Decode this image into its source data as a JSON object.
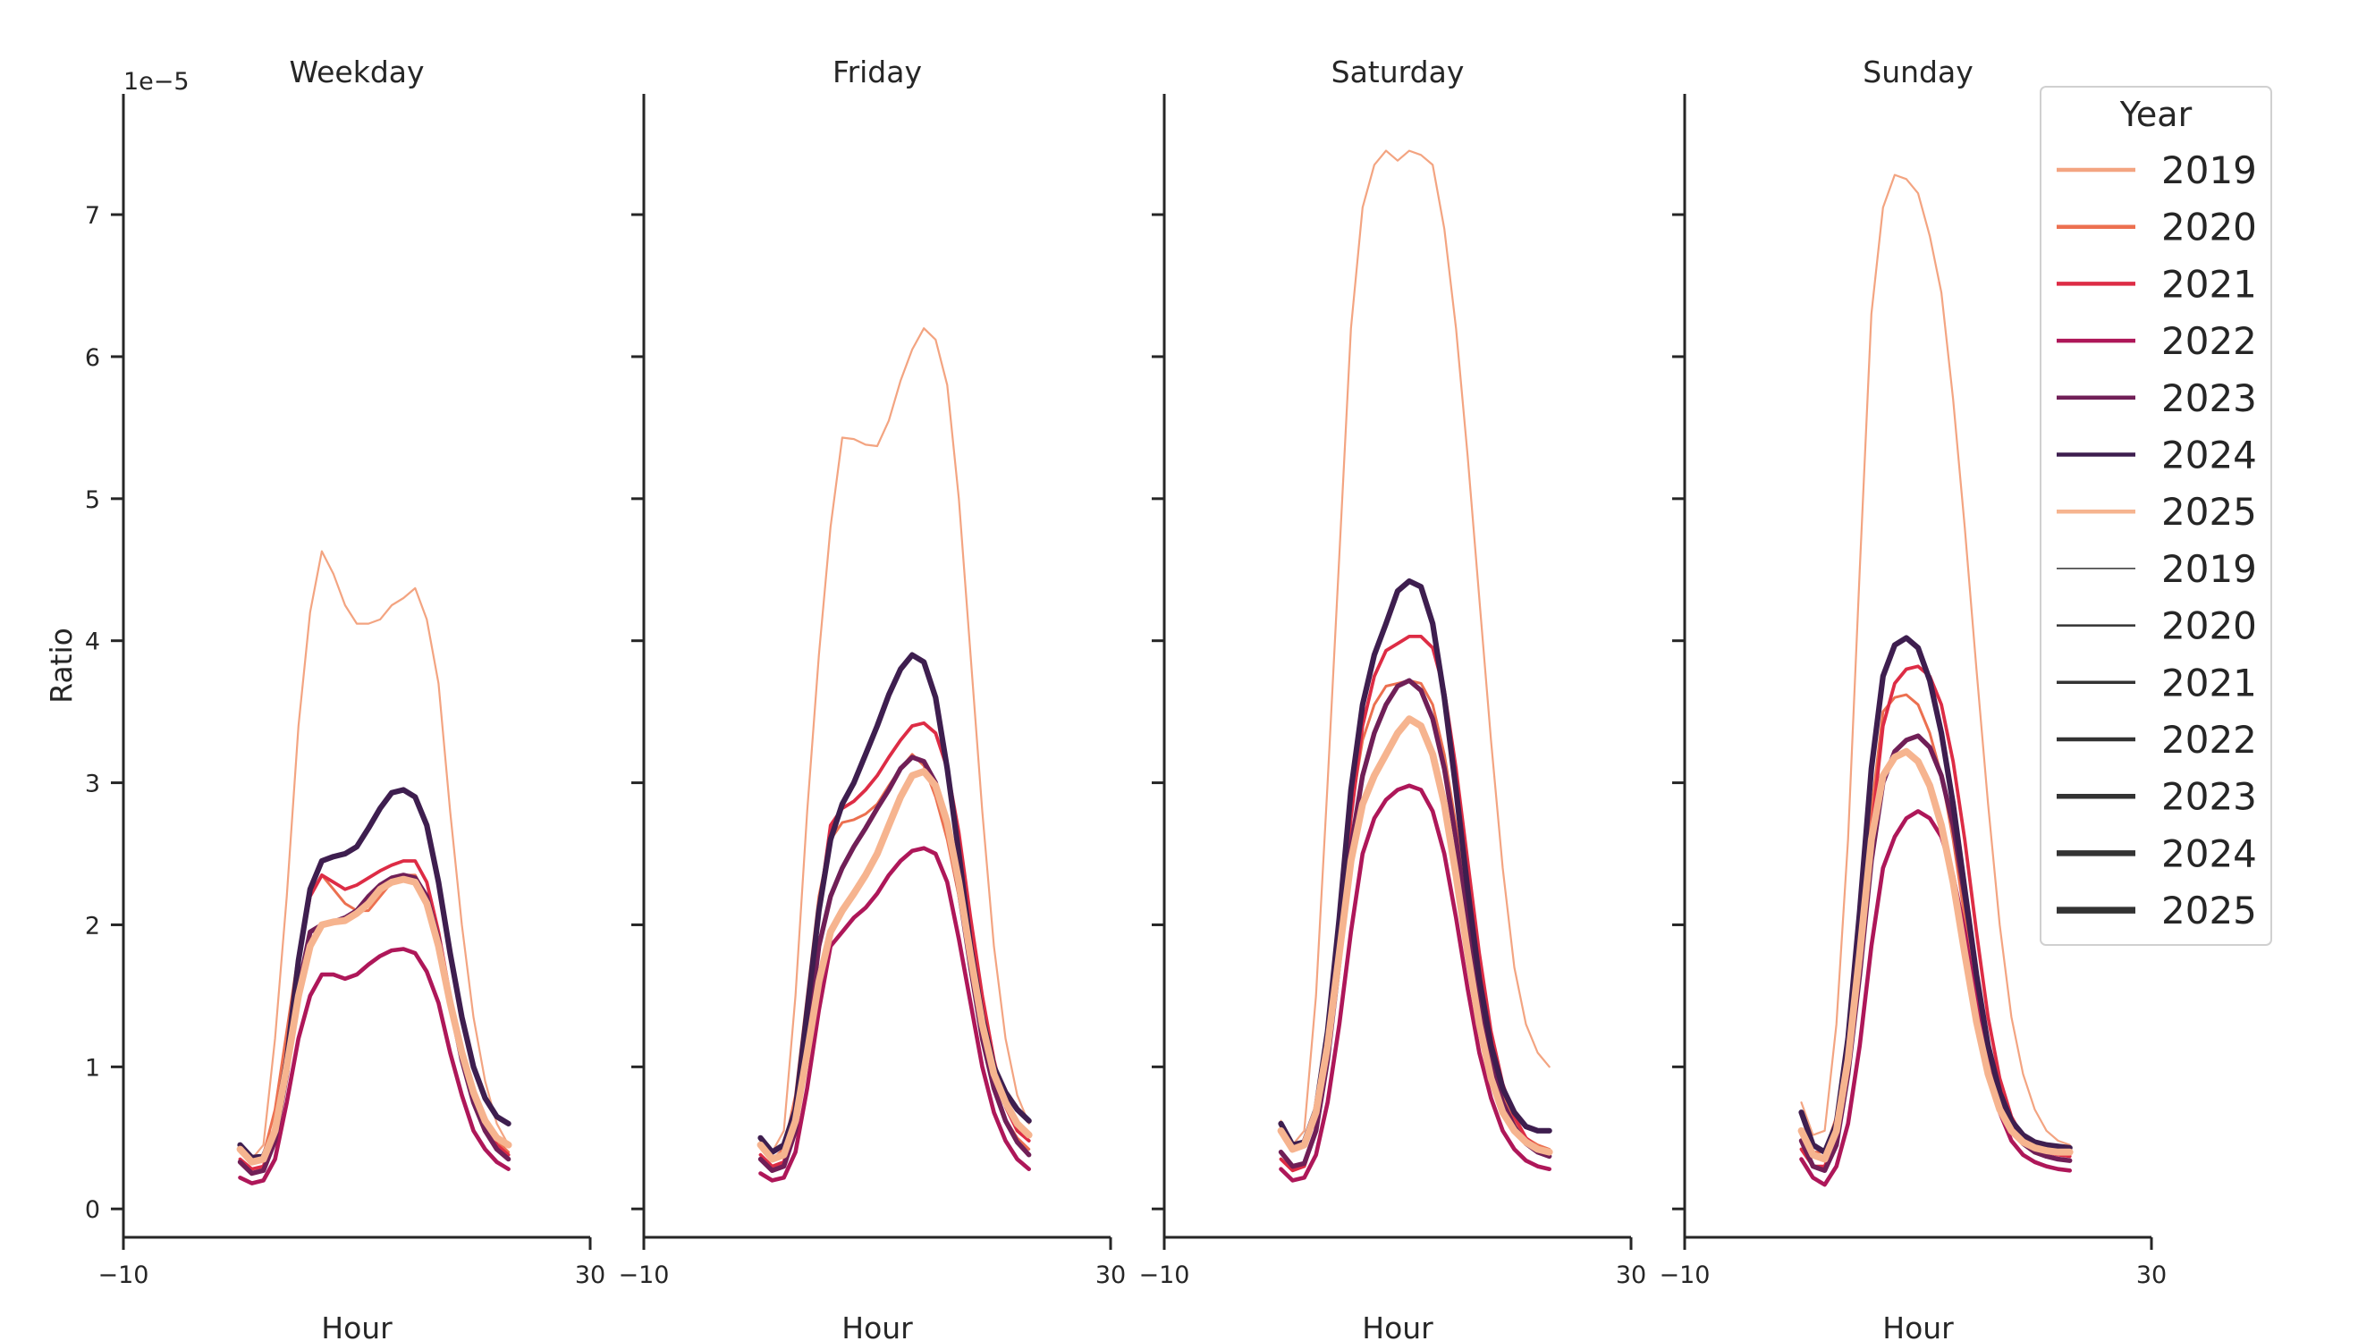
{
  "chart_data": {
    "type": "line",
    "ylabel": "Ratio",
    "xlabel": "Hour",
    "y_offset_label": "1e−5",
    "y_scale": 1e-05,
    "xlim": [
      -10,
      30
    ],
    "ylim": [
      -0.2,
      7.85
    ],
    "x_ticks": [
      -10,
      30
    ],
    "x_tick_labels": [
      "−10",
      "30"
    ],
    "y_ticks": [
      0,
      1,
      2,
      3,
      4,
      5,
      6,
      7
    ],
    "y_tick_labels": [
      "0",
      "1",
      "2",
      "3",
      "4",
      "5",
      "6",
      "7"
    ],
    "x": [
      0,
      1,
      2,
      3,
      4,
      5,
      6,
      7,
      8,
      9,
      10,
      11,
      12,
      13,
      14,
      15,
      16,
      17,
      18,
      19,
      20,
      21,
      22,
      23
    ],
    "legend": {
      "title": "Year",
      "placement": "top-right",
      "hue_entries": [
        {
          "label": "2019",
          "color": "#f3a481"
        },
        {
          "label": "2020",
          "color": "#ec7050"
        },
        {
          "label": "2021",
          "color": "#dd2c45"
        },
        {
          "label": "2022",
          "color": "#ae1759"
        },
        {
          "label": "2023",
          "color": "#701f57"
        },
        {
          "label": "2024",
          "color": "#3e1e4f"
        },
        {
          "label": "2025",
          "color": "#f6b48f"
        }
      ],
      "size_entries": [
        "2019",
        "2020",
        "2021",
        "2022",
        "2023",
        "2024",
        "2025"
      ],
      "size_color": "#333333"
    },
    "panels": [
      {
        "title": "Weekday",
        "series": [
          {
            "name": "2019",
            "values": [
              0.45,
              0.35,
              0.45,
              1.2,
              2.2,
              3.4,
              4.2,
              4.63,
              4.47,
              4.25,
              4.12,
              4.12,
              4.15,
              4.25,
              4.3,
              4.37,
              4.15,
              3.7,
              2.8,
              2.0,
              1.35,
              0.9,
              0.6,
              0.45
            ]
          },
          {
            "name": "2020",
            "values": [
              0.42,
              0.33,
              0.38,
              0.7,
              1.25,
              1.8,
              2.2,
              2.35,
              2.25,
              2.15,
              2.1,
              2.1,
              2.2,
              2.3,
              2.35,
              2.35,
              2.2,
              1.9,
              1.45,
              1.1,
              0.8,
              0.6,
              0.48,
              0.4
            ]
          },
          {
            "name": "2021",
            "values": [
              0.35,
              0.28,
              0.3,
              0.55,
              1.1,
              1.75,
              2.2,
              2.35,
              2.3,
              2.25,
              2.28,
              2.33,
              2.38,
              2.42,
              2.45,
              2.45,
              2.3,
              1.95,
              1.5,
              1.1,
              0.8,
              0.6,
              0.45,
              0.38
            ]
          },
          {
            "name": "2022",
            "values": [
              0.22,
              0.18,
              0.2,
              0.35,
              0.75,
              1.2,
              1.5,
              1.65,
              1.65,
              1.62,
              1.65,
              1.72,
              1.78,
              1.82,
              1.83,
              1.8,
              1.67,
              1.45,
              1.1,
              0.8,
              0.55,
              0.42,
              0.33,
              0.28
            ]
          },
          {
            "name": "2023",
            "values": [
              0.33,
              0.25,
              0.27,
              0.48,
              0.95,
              1.55,
              1.95,
              2.0,
              2.02,
              2.05,
              2.1,
              2.2,
              2.28,
              2.33,
              2.35,
              2.33,
              2.2,
              1.9,
              1.45,
              1.05,
              0.75,
              0.55,
              0.42,
              0.35
            ]
          },
          {
            "name": "2024",
            "values": [
              0.45,
              0.36,
              0.37,
              0.55,
              1.05,
              1.75,
              2.25,
              2.45,
              2.48,
              2.5,
              2.55,
              2.68,
              2.82,
              2.93,
              2.95,
              2.9,
              2.7,
              2.3,
              1.8,
              1.35,
              1.0,
              0.78,
              0.65,
              0.6
            ]
          },
          {
            "name": "2025",
            "values": [
              0.42,
              0.33,
              0.35,
              0.55,
              1.0,
              1.5,
              1.85,
              2.0,
              2.02,
              2.03,
              2.08,
              2.15,
              2.25,
              2.3,
              2.32,
              2.3,
              2.15,
              1.85,
              1.45,
              1.1,
              0.82,
              0.62,
              0.5,
              0.45
            ]
          }
        ]
      },
      {
        "title": "Friday",
        "series": [
          {
            "name": "2019",
            "values": [
              0.5,
              0.4,
              0.55,
              1.5,
              2.8,
              3.9,
              4.8,
              5.43,
              5.42,
              5.38,
              5.37,
              5.55,
              5.83,
              6.05,
              6.2,
              6.12,
              5.8,
              5.0,
              3.9,
              2.8,
              1.85,
              1.2,
              0.8,
              0.6
            ]
          },
          {
            "name": "2020",
            "values": [
              0.45,
              0.35,
              0.42,
              0.8,
              1.5,
              2.2,
              2.6,
              2.72,
              2.74,
              2.78,
              2.85,
              2.98,
              3.1,
              3.2,
              3.12,
              2.9,
              2.6,
              2.2,
              1.7,
              1.2,
              0.85,
              0.63,
              0.5,
              0.42
            ]
          },
          {
            "name": "2021",
            "values": [
              0.38,
              0.3,
              0.33,
              0.65,
              1.35,
              2.1,
              2.7,
              2.82,
              2.87,
              2.95,
              3.05,
              3.18,
              3.3,
              3.4,
              3.42,
              3.35,
              3.1,
              2.65,
              2.05,
              1.5,
              1.05,
              0.72,
              0.55,
              0.48
            ]
          },
          {
            "name": "2022",
            "values": [
              0.25,
              0.2,
              0.22,
              0.4,
              0.85,
              1.4,
              1.85,
              1.95,
              2.05,
              2.12,
              2.22,
              2.35,
              2.45,
              2.52,
              2.54,
              2.5,
              2.3,
              1.9,
              1.45,
              1.0,
              0.68,
              0.48,
              0.35,
              0.28
            ]
          },
          {
            "name": "2023",
            "values": [
              0.35,
              0.27,
              0.3,
              0.55,
              1.2,
              1.85,
              2.2,
              2.4,
              2.55,
              2.68,
              2.82,
              2.95,
              3.1,
              3.18,
              3.15,
              3.0,
              2.7,
              2.25,
              1.7,
              1.2,
              0.85,
              0.62,
              0.47,
              0.38
            ]
          },
          {
            "name": "2024",
            "values": [
              0.5,
              0.4,
              0.45,
              0.7,
              1.4,
              2.1,
              2.6,
              2.85,
              3.0,
              3.2,
              3.4,
              3.62,
              3.8,
              3.9,
              3.85,
              3.6,
              3.1,
              2.5,
              1.85,
              1.35,
              1.0,
              0.82,
              0.7,
              0.62
            ]
          },
          {
            "name": "2025",
            "values": [
              0.45,
              0.35,
              0.38,
              0.62,
              1.1,
              1.6,
              1.95,
              2.1,
              2.22,
              2.35,
              2.5,
              2.7,
              2.9,
              3.05,
              3.08,
              2.98,
              2.72,
              2.3,
              1.78,
              1.3,
              0.95,
              0.75,
              0.6,
              0.52
            ]
          }
        ]
      },
      {
        "title": "Saturday",
        "series": [
          {
            "name": "2019",
            "values": [
              0.62,
              0.45,
              0.55,
              1.5,
              3.0,
              4.6,
              6.2,
              7.05,
              7.35,
              7.45,
              7.38,
              7.45,
              7.42,
              7.35,
              6.9,
              6.2,
              5.3,
              4.3,
              3.3,
              2.4,
              1.7,
              1.3,
              1.1,
              1.0
            ]
          },
          {
            "name": "2020",
            "values": [
              0.55,
              0.42,
              0.45,
              0.72,
              1.3,
              2.05,
              2.8,
              3.3,
              3.55,
              3.68,
              3.7,
              3.72,
              3.7,
              3.55,
              3.2,
              2.7,
              2.1,
              1.55,
              1.1,
              0.8,
              0.62,
              0.5,
              0.45,
              0.42
            ]
          },
          {
            "name": "2021",
            "values": [
              0.35,
              0.27,
              0.3,
              0.55,
              1.1,
              1.9,
              2.75,
              3.4,
              3.75,
              3.93,
              3.98,
              4.03,
              4.03,
              3.95,
              3.65,
              3.1,
              2.45,
              1.8,
              1.25,
              0.88,
              0.65,
              0.5,
              0.43,
              0.4
            ]
          },
          {
            "name": "2022",
            "values": [
              0.28,
              0.2,
              0.22,
              0.38,
              0.75,
              1.3,
              1.95,
              2.5,
              2.75,
              2.88,
              2.95,
              2.98,
              2.95,
              2.8,
              2.5,
              2.05,
              1.55,
              1.1,
              0.78,
              0.55,
              0.42,
              0.34,
              0.3,
              0.28
            ]
          },
          {
            "name": "2023",
            "values": [
              0.4,
              0.3,
              0.32,
              0.55,
              1.05,
              1.75,
              2.55,
              3.05,
              3.35,
              3.55,
              3.68,
              3.72,
              3.65,
              3.45,
              3.1,
              2.6,
              2.0,
              1.45,
              1.02,
              0.75,
              0.58,
              0.46,
              0.4,
              0.37
            ]
          },
          {
            "name": "2024",
            "values": [
              0.6,
              0.45,
              0.47,
              0.7,
              1.25,
              2.05,
              2.95,
              3.55,
              3.9,
              4.12,
              4.35,
              4.42,
              4.38,
              4.12,
              3.6,
              2.95,
              2.25,
              1.62,
              1.15,
              0.85,
              0.68,
              0.58,
              0.55,
              0.55
            ]
          },
          {
            "name": "2025",
            "values": [
              0.55,
              0.42,
              0.45,
              0.68,
              1.15,
              1.8,
              2.45,
              2.85,
              3.05,
              3.2,
              3.35,
              3.45,
              3.4,
              3.2,
              2.85,
              2.35,
              1.8,
              1.3,
              0.92,
              0.68,
              0.55,
              0.47,
              0.42,
              0.4
            ]
          }
        ]
      },
      {
        "title": "Sunday",
        "series": [
          {
            "name": "2019",
            "values": [
              0.75,
              0.52,
              0.55,
              1.3,
              2.6,
              4.5,
              6.3,
              7.05,
              7.28,
              7.25,
              7.15,
              6.85,
              6.45,
              5.7,
              4.8,
              3.8,
              2.85,
              2.0,
              1.35,
              0.95,
              0.7,
              0.55,
              0.48,
              0.45
            ]
          },
          {
            "name": "2020",
            "values": [
              0.55,
              0.4,
              0.4,
              0.65,
              1.2,
              1.95,
              2.8,
              3.5,
              3.6,
              3.62,
              3.55,
              3.35,
              3.05,
              2.6,
              2.05,
              1.5,
              1.05,
              0.75,
              0.58,
              0.48,
              0.43,
              0.4,
              0.38,
              0.37
            ]
          },
          {
            "name": "2021",
            "values": [
              0.42,
              0.3,
              0.3,
              0.5,
              1.0,
              1.75,
              2.65,
              3.4,
              3.7,
              3.8,
              3.82,
              3.75,
              3.55,
              3.15,
              2.6,
              1.95,
              1.35,
              0.92,
              0.65,
              0.5,
              0.43,
              0.4,
              0.38,
              0.37
            ]
          },
          {
            "name": "2022",
            "values": [
              0.35,
              0.22,
              0.17,
              0.3,
              0.6,
              1.15,
              1.85,
              2.4,
              2.62,
              2.75,
              2.8,
              2.75,
              2.62,
              2.35,
              1.95,
              1.45,
              1.0,
              0.68,
              0.48,
              0.38,
              0.33,
              0.3,
              0.28,
              0.27
            ]
          },
          {
            "name": "2023",
            "values": [
              0.48,
              0.3,
              0.27,
              0.45,
              0.95,
              1.65,
              2.45,
              3.0,
              3.22,
              3.3,
              3.33,
              3.25,
              3.05,
              2.7,
              2.2,
              1.65,
              1.15,
              0.8,
              0.58,
              0.46,
              0.4,
              0.37,
              0.35,
              0.34
            ]
          },
          {
            "name": "2024",
            "values": [
              0.68,
              0.45,
              0.4,
              0.6,
              1.2,
              2.1,
              3.1,
              3.75,
              3.97,
              4.02,
              3.95,
              3.72,
              3.35,
              2.85,
              2.25,
              1.65,
              1.15,
              0.82,
              0.62,
              0.52,
              0.47,
              0.45,
              0.44,
              0.43
            ]
          },
          {
            "name": "2025",
            "values": [
              0.55,
              0.38,
              0.35,
              0.55,
              1.05,
              1.8,
              2.6,
              3.05,
              3.18,
              3.22,
              3.15,
              2.98,
              2.7,
              2.3,
              1.8,
              1.32,
              0.95,
              0.7,
              0.55,
              0.47,
              0.43,
              0.41,
              0.4,
              0.4
            ]
          }
        ]
      }
    ]
  }
}
